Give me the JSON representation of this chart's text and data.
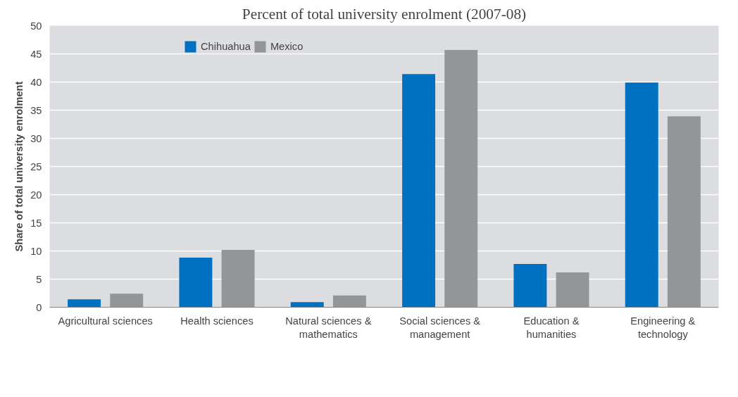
{
  "chart_data": {
    "type": "bar",
    "title": "Percent of total university enrolment (2007-08)",
    "ylabel": "Share of total university enrolment",
    "categories": [
      "Agricultural sciences",
      "Health sciences",
      "Natural sciences & mathematics",
      "Social sciences & management",
      "Education & humanities",
      "Engineering & technology"
    ],
    "series": [
      {
        "name": "Chihuahua",
        "color": "#0070c0",
        "values": [
          1.4,
          8.8,
          0.9,
          41.4,
          7.7,
          39.9
        ]
      },
      {
        "name": "Mexico",
        "color": "#939598",
        "values": [
          2.4,
          10.2,
          2.1,
          45.7,
          6.2,
          33.9
        ]
      }
    ],
    "ylim": [
      0,
      50
    ],
    "yticks": [
      0,
      5,
      10,
      15,
      20,
      25,
      30,
      35,
      40,
      45,
      50
    ],
    "grid": "y",
    "legend": "top"
  }
}
